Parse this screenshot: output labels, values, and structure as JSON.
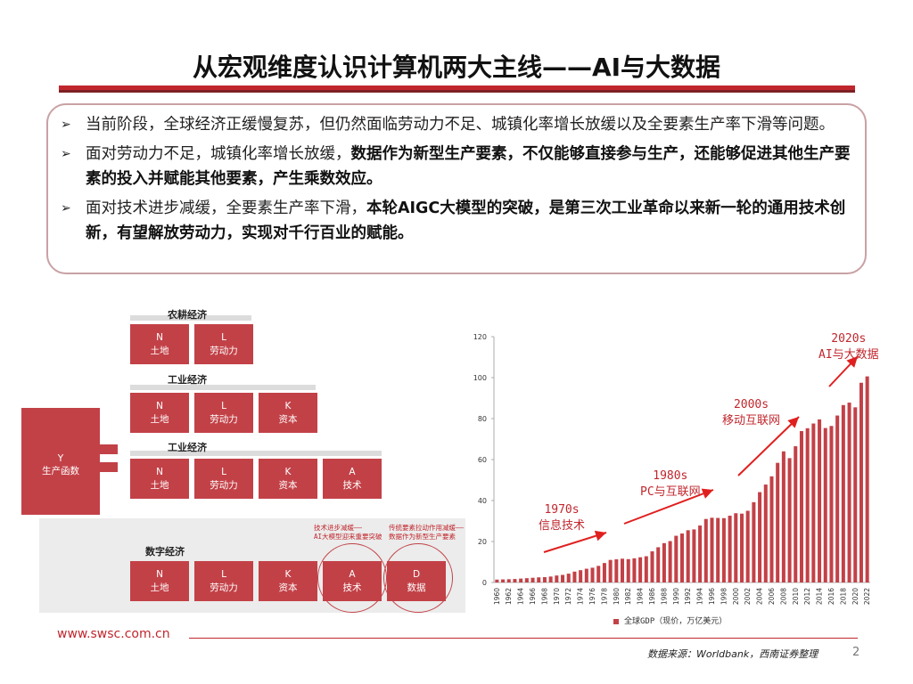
{
  "title": "从宏观维度认识计算机两大主线——AI与大数据",
  "bullets": [
    {
      "normal": "当前阶段，全球经济正缓慢复苏，但仍然面临劳动力不足、城镇化率增长放缓以及全要素生产率下滑等问题。",
      "bold": ""
    },
    {
      "normal": "面对劳动力不足，城镇化率增长放缓，",
      "bold": "数据作为新型生产要素，不仅能够直接参与生产，还能够促进其他生产要素的投入并赋能其他要素，产生乘数效应。"
    },
    {
      "normal": "面对技术进步减缓，全要素生产率下滑，",
      "bold": "本轮AIGC大模型的突破，是第三次工业革命以来新一轮的通用技术创新，有望解放劳动力，实现对千行百业的赋能。"
    }
  ],
  "diagram": {
    "y_box": {
      "letter": "Y",
      "label": "生产函数"
    },
    "sections": [
      {
        "header": "农耕经济",
        "cells": [
          {
            "letter": "N",
            "label": "土地"
          },
          {
            "letter": "L",
            "label": "劳动力"
          }
        ]
      },
      {
        "header": "工业经济",
        "cells": [
          {
            "letter": "N",
            "label": "土地"
          },
          {
            "letter": "L",
            "label": "劳动力"
          },
          {
            "letter": "K",
            "label": "资本"
          }
        ]
      },
      {
        "header": "工业经济",
        "cells": [
          {
            "letter": "N",
            "label": "土地"
          },
          {
            "letter": "L",
            "label": "劳动力"
          },
          {
            "letter": "K",
            "label": "资本"
          },
          {
            "letter": "A",
            "label": "技术"
          }
        ]
      },
      {
        "header": "数字经济",
        "cells": [
          {
            "letter": "N",
            "label": "土地"
          },
          {
            "letter": "L",
            "label": "劳动力"
          },
          {
            "letter": "K",
            "label": "资本"
          },
          {
            "letter": "A",
            "label": "技术"
          },
          {
            "letter": "D",
            "label": "数据"
          }
        ]
      }
    ],
    "note_a": [
      "技术进步减缓——",
      "AI大模型迎来重要突破"
    ],
    "note_d": [
      "传统要素拉动作用减缓——",
      "数据作为新型生产要素"
    ]
  },
  "chart_data": {
    "type": "bar",
    "categories": [
      "1960",
      "1961",
      "1962",
      "1963",
      "1964",
      "1965",
      "1966",
      "1967",
      "1968",
      "1969",
      "1970",
      "1971",
      "1972",
      "1973",
      "1974",
      "1975",
      "1976",
      "1977",
      "1978",
      "1979",
      "1980",
      "1981",
      "1982",
      "1983",
      "1984",
      "1985",
      "1986",
      "1987",
      "1988",
      "1989",
      "1990",
      "1991",
      "1992",
      "1993",
      "1994",
      "1995",
      "1996",
      "1997",
      "1998",
      "1999",
      "2000",
      "2001",
      "2002",
      "2003",
      "2004",
      "2005",
      "2006",
      "2007",
      "2008",
      "2009",
      "2010",
      "2011",
      "2012",
      "2013",
      "2014",
      "2015",
      "2016",
      "2017",
      "2018",
      "2019",
      "2020",
      "2021",
      "2022"
    ],
    "tick_labels": [
      "1960",
      "1962",
      "1964",
      "1966",
      "1968",
      "1970",
      "1972",
      "1974",
      "1976",
      "1978",
      "1980",
      "1982",
      "1984",
      "1986",
      "1988",
      "1990",
      "1992",
      "1994",
      "1996",
      "1998",
      "2000",
      "2002",
      "2004",
      "2006",
      "2008",
      "2010",
      "2012",
      "2014",
      "2016",
      "2018",
      "2020",
      "2022"
    ],
    "series": [
      {
        "name": "全球GDP（现价，万亿美元）",
        "values": [
          1.4,
          1.5,
          1.6,
          1.7,
          1.9,
          2.1,
          2.3,
          2.5,
          2.6,
          2.9,
          3.4,
          3.7,
          4.3,
          5.3,
          6.0,
          6.7,
          7.2,
          8.1,
          9.5,
          11.0,
          11.3,
          11.6,
          11.4,
          11.8,
          12.3,
          12.8,
          15.2,
          17.2,
          19.2,
          20.2,
          22.8,
          23.9,
          25.5,
          25.9,
          27.8,
          31.0,
          31.6,
          31.5,
          31.4,
          32.6,
          33.8,
          33.6,
          35.0,
          39.2,
          44.1,
          47.8,
          51.8,
          58.4,
          64.0,
          60.7,
          66.5,
          73.9,
          75.3,
          77.6,
          79.6,
          75.4,
          76.4,
          81.5,
          86.6,
          87.8,
          85.5,
          97.5,
          100.6
        ]
      }
    ],
    "yticks": [
      "0",
      "20",
      "40",
      "60",
      "80",
      "100",
      "120"
    ],
    "ylim": [
      0,
      120
    ],
    "annotations": [
      {
        "label": "1970s",
        "sub": "信息技术"
      },
      {
        "label": "1980s",
        "sub": "PC与互联网"
      },
      {
        "label": "2000s",
        "sub": "移动互联网"
      },
      {
        "label": "2020s",
        "sub": "AI与大数据"
      }
    ],
    "bar_color": "#c24147"
  },
  "footer": {
    "url": "www.swsc.com.cn",
    "source": "数据来源：Worldbank，西南证券整理",
    "page": "2"
  }
}
